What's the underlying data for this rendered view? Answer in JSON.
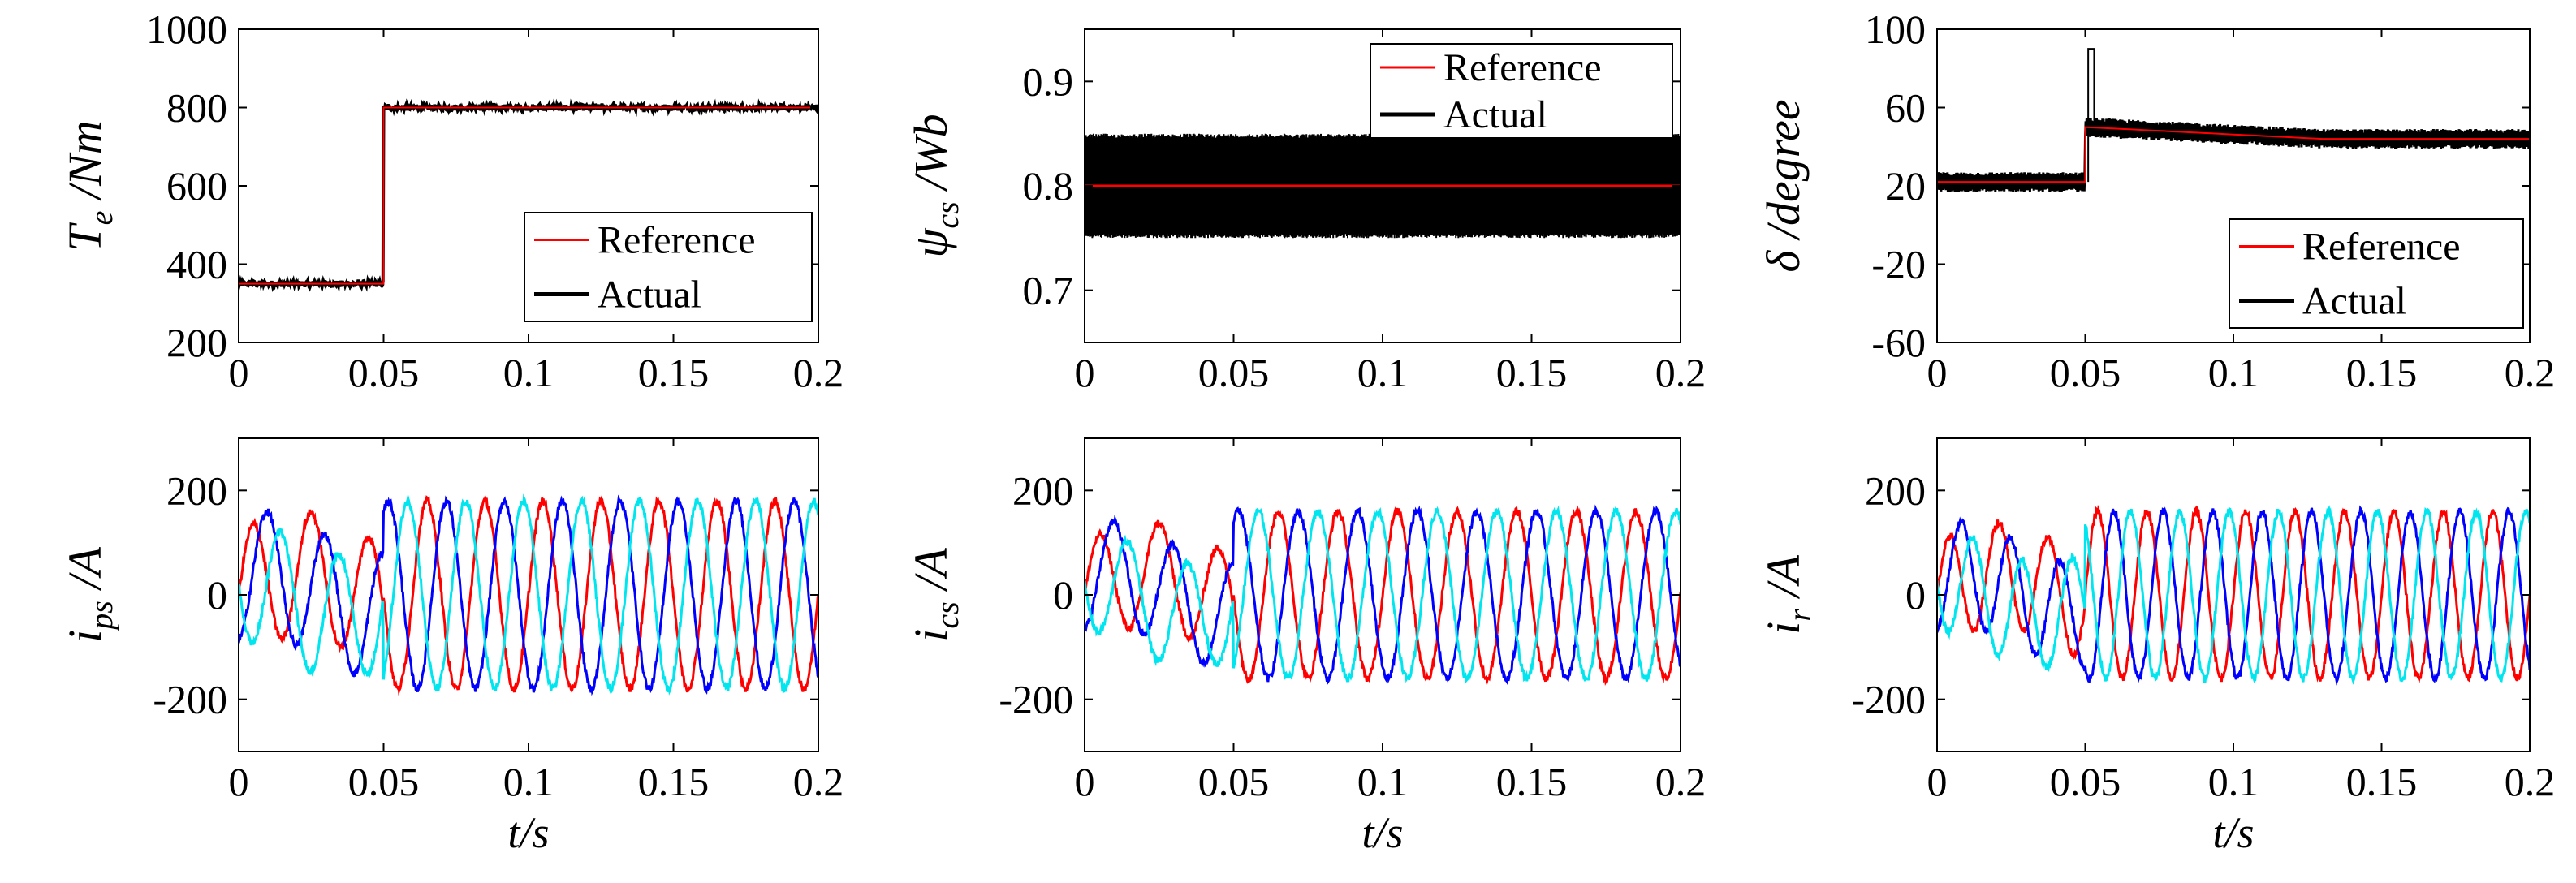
{
  "chart_data": [
    {
      "type": "line",
      "panel": "top-left",
      "ylabel": {
        "main": "T",
        "sub": "e",
        "unit": "/Nm"
      },
      "xlabel": "",
      "xlim": [
        0,
        0.2
      ],
      "ylim": [
        200,
        1000
      ],
      "xticks": [
        "0",
        "0.05",
        "0.1",
        "0.15",
        "0.2"
      ],
      "yticks": [
        200,
        400,
        600,
        800,
        1000
      ],
      "legend": {
        "placement": "bottom-right",
        "entries": [
          "Reference",
          "Actual"
        ]
      },
      "series": [
        {
          "name": "Reference",
          "color": "#ff0000",
          "step_x": 0.05,
          "before": 350,
          "after": 800,
          "ripple": 0
        },
        {
          "name": "Actual",
          "color": "#000000",
          "step_x": 0.05,
          "before": 350,
          "after": 800,
          "ripple": 8
        }
      ]
    },
    {
      "type": "line",
      "panel": "top-middle",
      "ylabel": {
        "main": "ψ",
        "sub": "cs",
        "unit": "/Wb"
      },
      "xlabel": "",
      "xlim": [
        0,
        0.2
      ],
      "ylim": [
        0.65,
        0.95
      ],
      "xticks": [
        "0",
        "0.05",
        "0.1",
        "0.15",
        "0.2"
      ],
      "yticks": [
        0.7,
        0.8,
        0.9
      ],
      "legend": {
        "placement": "top-right",
        "entries": [
          "Reference",
          "Actual"
        ]
      },
      "series": [
        {
          "name": "Reference",
          "color": "#ff0000",
          "value": 0.8
        },
        {
          "name": "Actual",
          "color": "#000000",
          "band": [
            0.75,
            0.85
          ]
        }
      ]
    },
    {
      "type": "line",
      "panel": "top-right",
      "ylabel": {
        "main": "δ",
        "sub": "",
        "unit": "/degree"
      },
      "xlabel": "",
      "xlim": [
        0,
        0.2
      ],
      "ylim": [
        -60,
        100
      ],
      "xticks": [
        "0",
        "0.05",
        "0.1",
        "0.15",
        "0.2"
      ],
      "yticks": [
        -60,
        -20,
        20,
        60,
        100
      ],
      "legend": {
        "placement": "bottom-right",
        "entries": [
          "Reference",
          "Actual"
        ]
      },
      "series": [
        {
          "name": "Reference",
          "color": "#ff0000",
          "step_x": 0.05,
          "before": 22,
          "after_start": 50,
          "after_end": 44
        },
        {
          "name": "Actual",
          "color": "#000000",
          "step_x": 0.05,
          "before": 22,
          "after_start": 50,
          "after_end": 44,
          "band_half": 5,
          "spike": 90
        }
      ]
    },
    {
      "type": "line",
      "panel": "bottom-left",
      "ylabel": {
        "main": "i",
        "sub": "ps",
        "unit": "/A"
      },
      "xlabel": "t/s",
      "xlim": [
        0,
        0.2
      ],
      "ylim": [
        -300,
        300
      ],
      "xticks": [
        "0",
        "0.05",
        "0.1",
        "0.15",
        "0.2"
      ],
      "yticks": [
        -200,
        0,
        200
      ],
      "phases": {
        "amp_before": 120,
        "amp_after": 180,
        "freq_hz": 50,
        "step_x": 0.05
      },
      "series": [
        {
          "color": "#ff0000"
        },
        {
          "color": "#0000ff"
        },
        {
          "color": "#00e5ee"
        }
      ]
    },
    {
      "type": "line",
      "panel": "bottom-middle",
      "ylabel": {
        "main": "i",
        "sub": "cs",
        "unit": "/A"
      },
      "xlabel": "t/s",
      "xlim": [
        0,
        0.2
      ],
      "ylim": [
        -300,
        300
      ],
      "xticks": [
        "0",
        "0.05",
        "0.1",
        "0.15",
        "0.2"
      ],
      "yticks": [
        -200,
        0,
        200
      ],
      "phases": {
        "amp_before": 100,
        "amp_after": 160,
        "freq_hz": 50,
        "step_x": 0.05
      },
      "series": [
        {
          "color": "#ff0000"
        },
        {
          "color": "#0000ff"
        },
        {
          "color": "#00e5ee"
        }
      ]
    },
    {
      "type": "line",
      "panel": "bottom-right",
      "ylabel": {
        "main": "i",
        "sub": "r",
        "unit": "/A"
      },
      "xlabel": "t/s",
      "xlim": [
        0,
        0.2
      ],
      "ylim": [
        -300,
        300
      ],
      "xticks": [
        "0",
        "0.05",
        "0.1",
        "0.15",
        "0.2"
      ],
      "yticks": [
        -200,
        0,
        200
      ],
      "phases": {
        "amp_before": 100,
        "amp_after": 160,
        "freq_hz": 60,
        "step_x": 0.05
      },
      "series": [
        {
          "color": "#ff0000"
        },
        {
          "color": "#0000ff"
        },
        {
          "color": "#00e5ee"
        }
      ]
    }
  ]
}
